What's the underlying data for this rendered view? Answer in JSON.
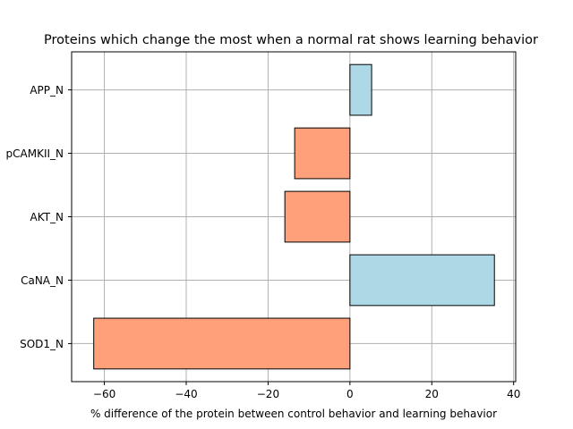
{
  "chart_data": {
    "type": "bar",
    "orientation": "horizontal",
    "title": "Proteins which change the most when a normal rat shows learning behavior",
    "xlabel": "% difference of the protein between control behavior and learning behavior",
    "ylabel": "",
    "categories": [
      "APP_N",
      "pCAMKII_N",
      "AKT_N",
      "CaNA_N",
      "SOD1_N"
    ],
    "values": [
      5.3,
      -13.5,
      -15.9,
      35.3,
      -62.6
    ],
    "xlim": [
      -68,
      40.5
    ],
    "xticks": [
      -60,
      -40,
      -20,
      0,
      20,
      40
    ],
    "xtick_labels": [
      "−60",
      "−40",
      "−20",
      "0",
      "20",
      "40"
    ],
    "grid": true,
    "colors": {
      "positive": "#add8e6",
      "negative": "#ffa07a",
      "edge": "#000000",
      "grid": "#b0b0b0"
    }
  }
}
